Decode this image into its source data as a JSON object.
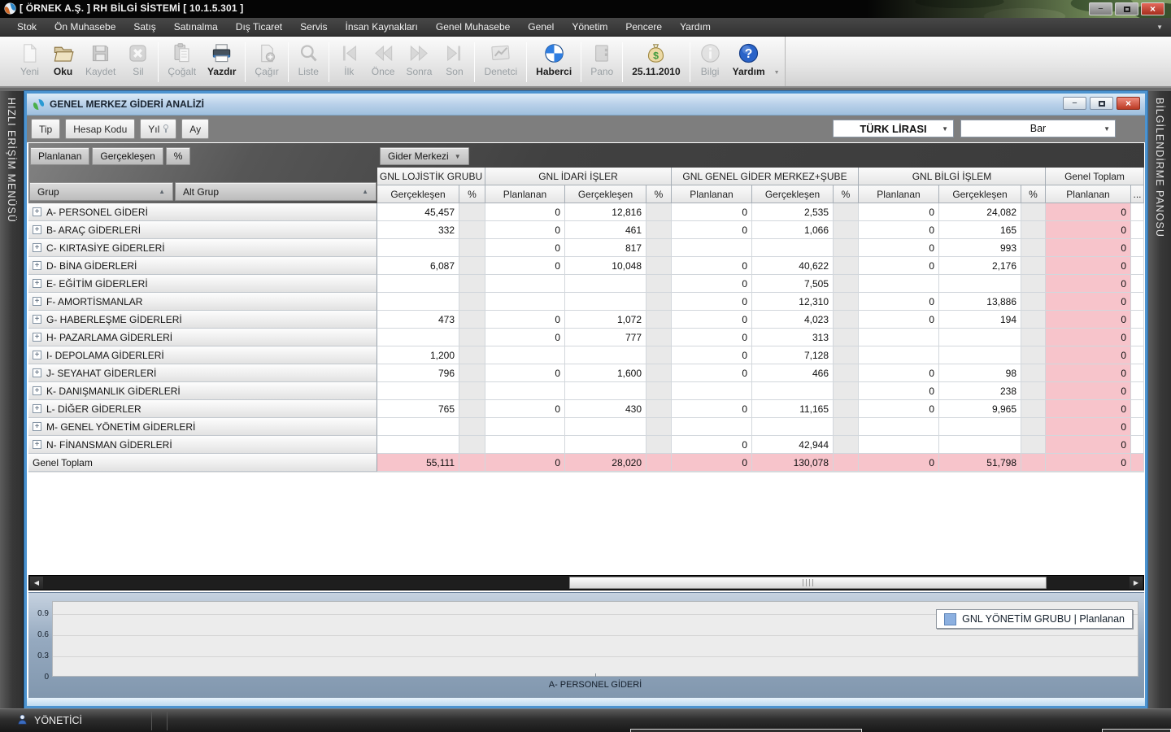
{
  "titlebar": {
    "title": "[ ÖRNEK A.Ş. ] RH BİLGİ SİSTEMİ [ 10.1.5.301 ]"
  },
  "menubar": {
    "items": [
      "Stok",
      "Ön Muhasebe",
      "Satış",
      "Satınalma",
      "Dış Ticaret",
      "Servis",
      "İnsan Kaynakları",
      "Genel Muhasebe",
      "Genel",
      "Yönetim",
      "Pencere",
      "Yardım"
    ]
  },
  "toolbar": {
    "buttons": [
      {
        "label": "Yeni",
        "icon": "new-doc",
        "enabled": false,
        "sep_after": false
      },
      {
        "label": "Oku",
        "icon": "open-folder",
        "enabled": true,
        "sep_after": false
      },
      {
        "label": "Kaydet",
        "icon": "save-floppy",
        "enabled": false,
        "sep_after": false
      },
      {
        "label": "Sil",
        "icon": "delete-x",
        "enabled": false,
        "sep_after": true
      },
      {
        "label": "Çoğalt",
        "icon": "duplicate-doc",
        "enabled": false,
        "sep_after": false
      },
      {
        "label": "Yazdır",
        "icon": "printer",
        "enabled": true,
        "sep_after": true
      },
      {
        "label": "Çağır",
        "icon": "call-doc",
        "enabled": false,
        "sep_after": true
      },
      {
        "label": "Liste",
        "icon": "magnifier",
        "enabled": false,
        "sep_after": true
      },
      {
        "label": "İlk",
        "icon": "nav-first",
        "enabled": false,
        "sep_after": false
      },
      {
        "label": "Önce",
        "icon": "nav-prev",
        "enabled": false,
        "sep_after": false
      },
      {
        "label": "Sonra",
        "icon": "nav-next",
        "enabled": false,
        "sep_after": false
      },
      {
        "label": "Son",
        "icon": "nav-last",
        "enabled": false,
        "sep_after": true
      },
      {
        "label": "Denetci",
        "icon": "chart-doc",
        "enabled": false,
        "sep_after": true
      },
      {
        "label": "Haberci",
        "icon": "sphere",
        "enabled": true,
        "sep_after": true
      },
      {
        "label": "Pano",
        "icon": "panel",
        "enabled": false,
        "sep_after": true
      },
      {
        "label": "25.11.2010",
        "icon": "money-bag",
        "enabled": true,
        "sep_after": true
      },
      {
        "label": "Bilgi",
        "icon": "info-circle",
        "enabled": false,
        "sep_after": false
      },
      {
        "label": "Yardım",
        "icon": "help-circle",
        "enabled": true,
        "sep_after": false
      }
    ]
  },
  "left_panel": {
    "label": "HIZLI ERİŞİM MENÜSÜ"
  },
  "right_panel": {
    "label": "BİLGİLENDİRME PANOSU"
  },
  "doc_window": {
    "title": "GENEL MERKEZ GİDERİ ANALİZİ",
    "filter_buttons": [
      "Tip",
      "Hesap Kodu",
      "Yıl",
      "Ay"
    ],
    "currency_select": "TÜRK LİRASI",
    "chart_select": "Bar",
    "measure_buttons": [
      "Planlanan",
      "Gerçekleşen",
      "%"
    ],
    "column_field_button": "Gider Merkezi",
    "row_headers": [
      {
        "label": "Grup"
      },
      {
        "label": "Alt Grup"
      }
    ],
    "column_groups": [
      {
        "name": "GNL LOJİSTİK GRUBU",
        "columns": [
          "Gerçekleşen",
          "%"
        ]
      },
      {
        "name": "GNL İDARİ İŞLER",
        "columns": [
          "Planlanan",
          "Gerçekleşen",
          "%"
        ]
      },
      {
        "name": "GNL GENEL GİDER MERKEZ+ŞUBE",
        "columns": [
          "Planlanan",
          "Gerçekleşen",
          "%"
        ]
      },
      {
        "name": "GNL BİLGİ İŞLEM",
        "columns": [
          "Planlanan",
          "Gerçekleşen",
          "%"
        ]
      },
      {
        "name": "Genel Toplam",
        "columns": [
          "Planlanan",
          "..."
        ]
      }
    ],
    "rows": [
      {
        "label": "A- PERSONEL GİDERİ",
        "values": [
          "45,457",
          "",
          "0",
          "12,816",
          "",
          "0",
          "2,535",
          "",
          "0",
          "24,082",
          "",
          "0"
        ]
      },
      {
        "label": "B- ARAÇ GİDERLERİ",
        "values": [
          "332",
          "",
          "0",
          "461",
          "",
          "0",
          "1,066",
          "",
          "0",
          "165",
          "",
          "0"
        ]
      },
      {
        "label": "C- KIRTASİYE GİDERLERİ",
        "values": [
          "",
          "",
          "0",
          "817",
          "",
          "",
          "",
          "",
          "0",
          "993",
          "",
          "0"
        ]
      },
      {
        "label": "D- BİNA GİDERLERİ",
        "values": [
          "6,087",
          "",
          "0",
          "10,048",
          "",
          "0",
          "40,622",
          "",
          "0",
          "2,176",
          "",
          "0"
        ]
      },
      {
        "label": "E- EĞİTİM GİDERLERİ",
        "values": [
          "",
          "",
          "",
          "",
          "",
          "0",
          "7,505",
          "",
          "",
          "",
          "",
          "0"
        ]
      },
      {
        "label": "F- AMORTİSMANLAR",
        "values": [
          "",
          "",
          "",
          "",
          "",
          "0",
          "12,310",
          "",
          "0",
          "13,886",
          "",
          "0"
        ]
      },
      {
        "label": "G- HABERLEŞME GİDERLERİ",
        "values": [
          "473",
          "",
          "0",
          "1,072",
          "",
          "0",
          "4,023",
          "",
          "0",
          "194",
          "",
          "0"
        ]
      },
      {
        "label": "H- PAZARLAMA GİDERLERİ",
        "values": [
          "",
          "",
          "0",
          "777",
          "",
          "0",
          "313",
          "",
          "",
          "",
          "",
          "0"
        ]
      },
      {
        "label": "I- DEPOLAMA GİDERLERİ",
        "values": [
          "1,200",
          "",
          "",
          "",
          "",
          "0",
          "7,128",
          "",
          "",
          "",
          "",
          "0"
        ]
      },
      {
        "label": "J- SEYAHAT GİDERLERİ",
        "values": [
          "796",
          "",
          "0",
          "1,600",
          "",
          "0",
          "466",
          "",
          "0",
          "98",
          "",
          "0"
        ]
      },
      {
        "label": "K- DANIŞMANLIK GİDERLERİ",
        "values": [
          "",
          "",
          "",
          "",
          "",
          "",
          "",
          "",
          "0",
          "238",
          "",
          "0"
        ]
      },
      {
        "label": "L- DİĞER GİDERLER",
        "values": [
          "765",
          "",
          "0",
          "430",
          "",
          "0",
          "11,165",
          "",
          "0",
          "9,965",
          "",
          "0"
        ]
      },
      {
        "label": "M- GENEL YÖNETİM GİDERLERİ",
        "values": [
          "",
          "",
          "",
          "",
          "",
          "",
          "",
          "",
          "",
          "",
          "",
          "0"
        ]
      },
      {
        "label": "N- FİNANSMAN GİDERLERİ",
        "values": [
          "",
          "",
          "",
          "",
          "",
          "0",
          "42,944",
          "",
          "",
          "",
          "",
          "0"
        ]
      }
    ],
    "total_row": {
      "label": "Genel Toplam",
      "values": [
        "55,111",
        "",
        "0",
        "28,020",
        "",
        "0",
        "130,078",
        "",
        "0",
        "51,798",
        "",
        "0"
      ]
    },
    "colors": {
      "pink": "#f7c4cb",
      "pct_gray": "#e9e9e9"
    }
  },
  "chart": {
    "type": "bar",
    "y_ticks": [
      "0.9",
      "0.6",
      "0.3",
      "0"
    ],
    "y_range": [
      0,
      1
    ],
    "grid": true,
    "values": [],
    "legend": "GNL YÖNETİM GRUBU | Planlanan",
    "legend_color": "#8cb0e0",
    "legend_position": "top-right",
    "x_label": "A- PERSONEL GİDERİ"
  },
  "statusbar": {
    "user": "YÖNETİCİ"
  }
}
